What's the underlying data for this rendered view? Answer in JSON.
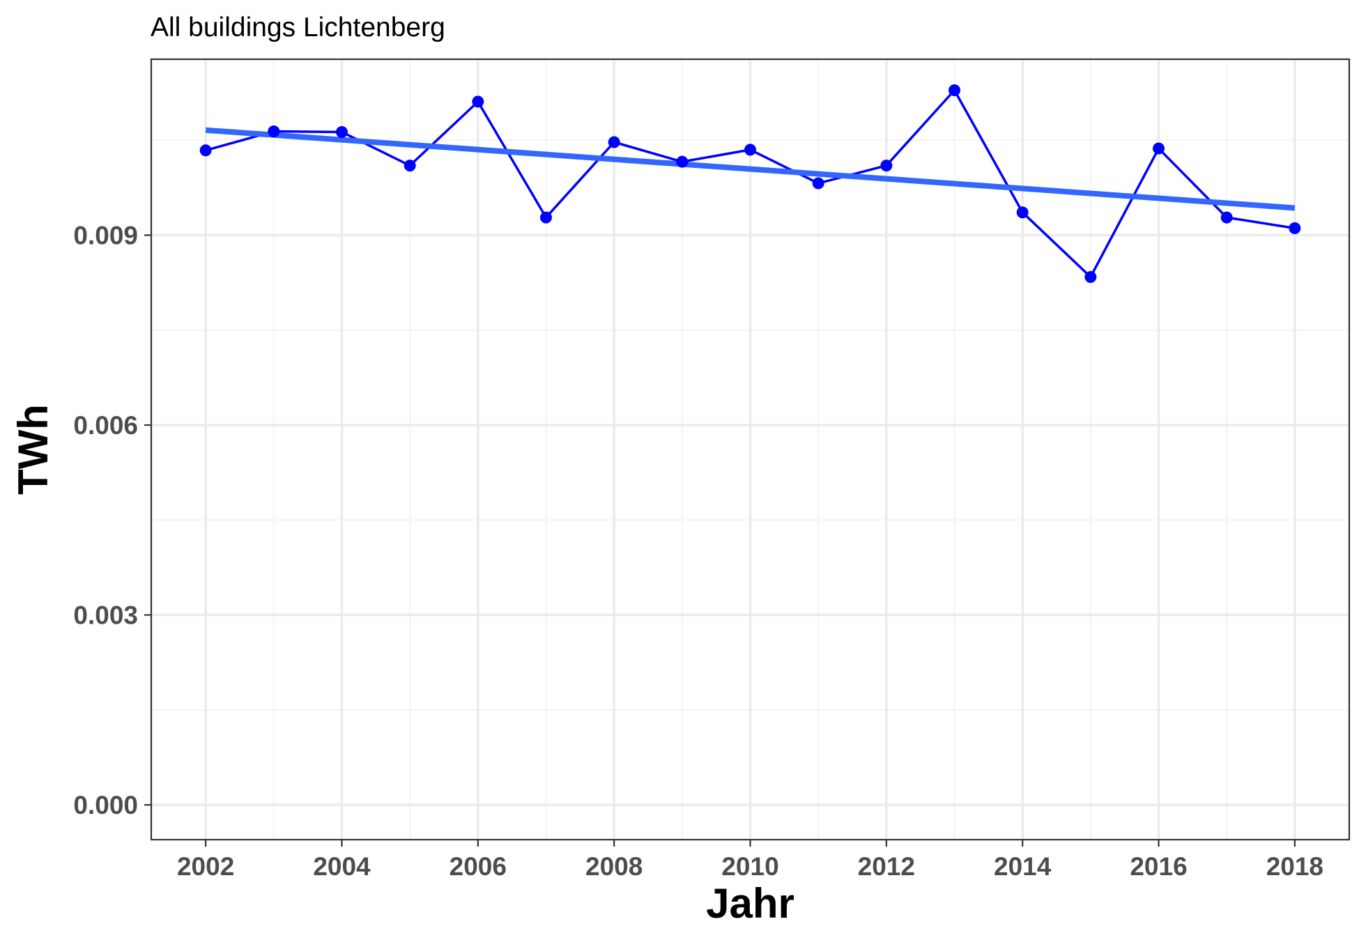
{
  "chart_data": {
    "type": "line",
    "title": "All buildings Lichtenberg",
    "xlabel": "Jahr",
    "ylabel": "TWh",
    "x": [
      2002,
      2003,
      2004,
      2005,
      2006,
      2007,
      2008,
      2009,
      2010,
      2011,
      2012,
      2013,
      2014,
      2015,
      2016,
      2017,
      2018
    ],
    "series": [
      {
        "name": "",
        "color": "#0000ff",
        "values": [
          0.01034,
          0.01064,
          0.01063,
          0.0101,
          0.01111,
          0.00928,
          0.01047,
          0.01016,
          0.01035,
          0.00982,
          0.0101,
          0.01129,
          0.00936,
          0.00834,
          0.01037,
          0.00928,
          0.00911
        ]
      }
    ],
    "trend": {
      "type": "linear",
      "color": "#3366ff",
      "start": [
        2002,
        0.01066
      ],
      "end": [
        2018,
        0.00943
      ]
    },
    "xticks": [
      2002,
      2004,
      2006,
      2008,
      2010,
      2012,
      2014,
      2016,
      2018
    ],
    "xtick_labels": [
      "2002",
      "2004",
      "2006",
      "2008",
      "2010",
      "2012",
      "2014",
      "2016",
      "2018"
    ],
    "yticks": [
      0,
      0.003,
      0.006,
      0.009
    ],
    "ytick_labels": [
      "0.000",
      "0.003",
      "0.006",
      "0.009"
    ],
    "xlim": [
      2001.2,
      2018.8
    ],
    "ylim": [
      -0.00055,
      0.01178
    ],
    "grid": true,
    "legend": "none"
  }
}
